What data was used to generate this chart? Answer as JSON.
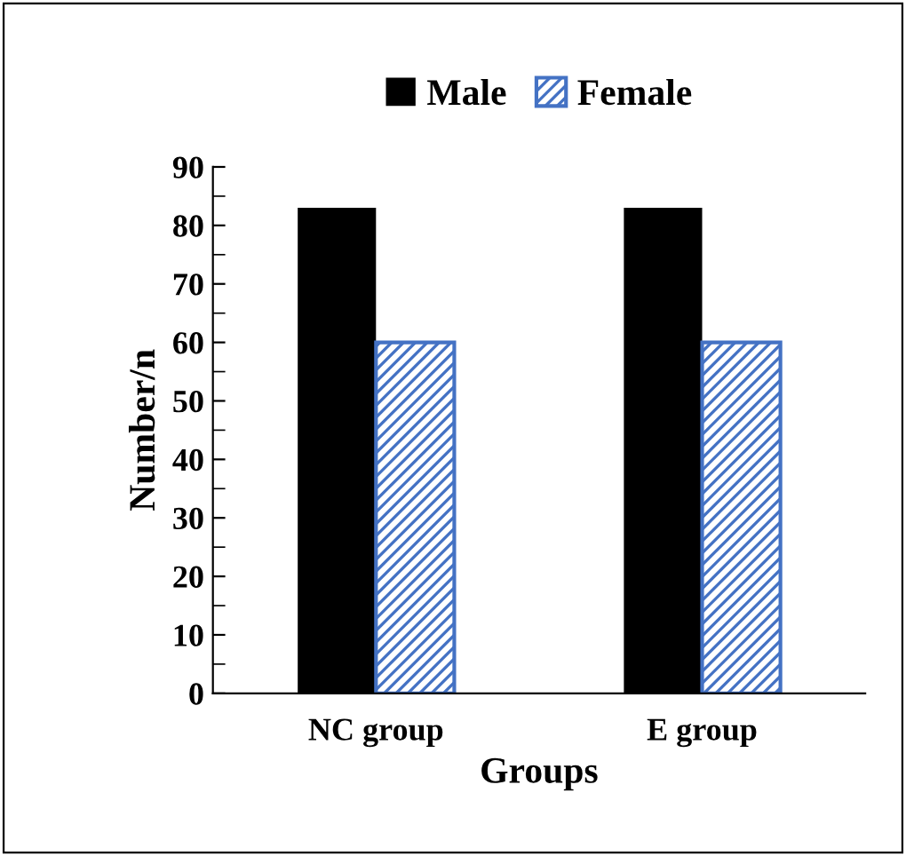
{
  "chart_data": {
    "type": "bar",
    "xlabel": "Groups",
    "ylabel": "Number/n",
    "categories": [
      "NC group",
      "E group"
    ],
    "series": [
      {
        "name": "Male",
        "color": "#000000",
        "values": [
          83,
          83
        ]
      },
      {
        "name": "Female",
        "color": "#4472c4",
        "values": [
          60,
          60
        ]
      }
    ],
    "ylim": [
      0,
      90
    ],
    "yticks": [
      0,
      10,
      20,
      30,
      40,
      50,
      60,
      70,
      80,
      90
    ],
    "grid": false,
    "legend": "top"
  }
}
